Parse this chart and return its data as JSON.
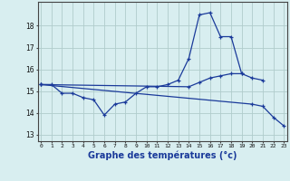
{
  "background_color": "#d8eef0",
  "grid_color": "#b0cccc",
  "line_color": "#1a3a9a",
  "marker_color": "#1a3a9a",
  "xlabel": "Graphe des températures (°c)",
  "xlabel_fontsize": 7,
  "ytick_labels": [
    "13",
    "14",
    "15",
    "16",
    "17",
    "18"
  ],
  "ytick_vals": [
    13,
    14,
    15,
    16,
    17,
    18
  ],
  "xtick_vals": [
    0,
    1,
    2,
    3,
    4,
    5,
    6,
    7,
    8,
    9,
    10,
    11,
    12,
    13,
    14,
    15,
    16,
    17,
    18,
    19,
    20,
    21,
    22,
    23
  ],
  "xlim": [
    -0.3,
    23.3
  ],
  "ylim": [
    12.7,
    19.1
  ],
  "series": [
    {
      "x": [
        0,
        1,
        2,
        3,
        4,
        5,
        6,
        7,
        8,
        9,
        10,
        11,
        12,
        13,
        14,
        15,
        16,
        17,
        18,
        19
      ],
      "y": [
        15.3,
        15.3,
        14.9,
        14.9,
        14.7,
        14.6,
        13.9,
        14.4,
        14.5,
        14.9,
        15.2,
        15.2,
        15.3,
        15.5,
        16.5,
        18.5,
        18.6,
        17.5,
        17.5,
        15.8
      ]
    },
    {
      "x": [
        0,
        14,
        15,
        16,
        17,
        18,
        19,
        20,
        21
      ],
      "y": [
        15.3,
        15.2,
        15.4,
        15.6,
        15.7,
        15.8,
        15.8,
        15.6,
        15.5
      ]
    },
    {
      "x": [
        0,
        20,
        21,
        22,
        23
      ],
      "y": [
        15.3,
        14.4,
        14.3,
        13.8,
        13.4
      ]
    }
  ]
}
